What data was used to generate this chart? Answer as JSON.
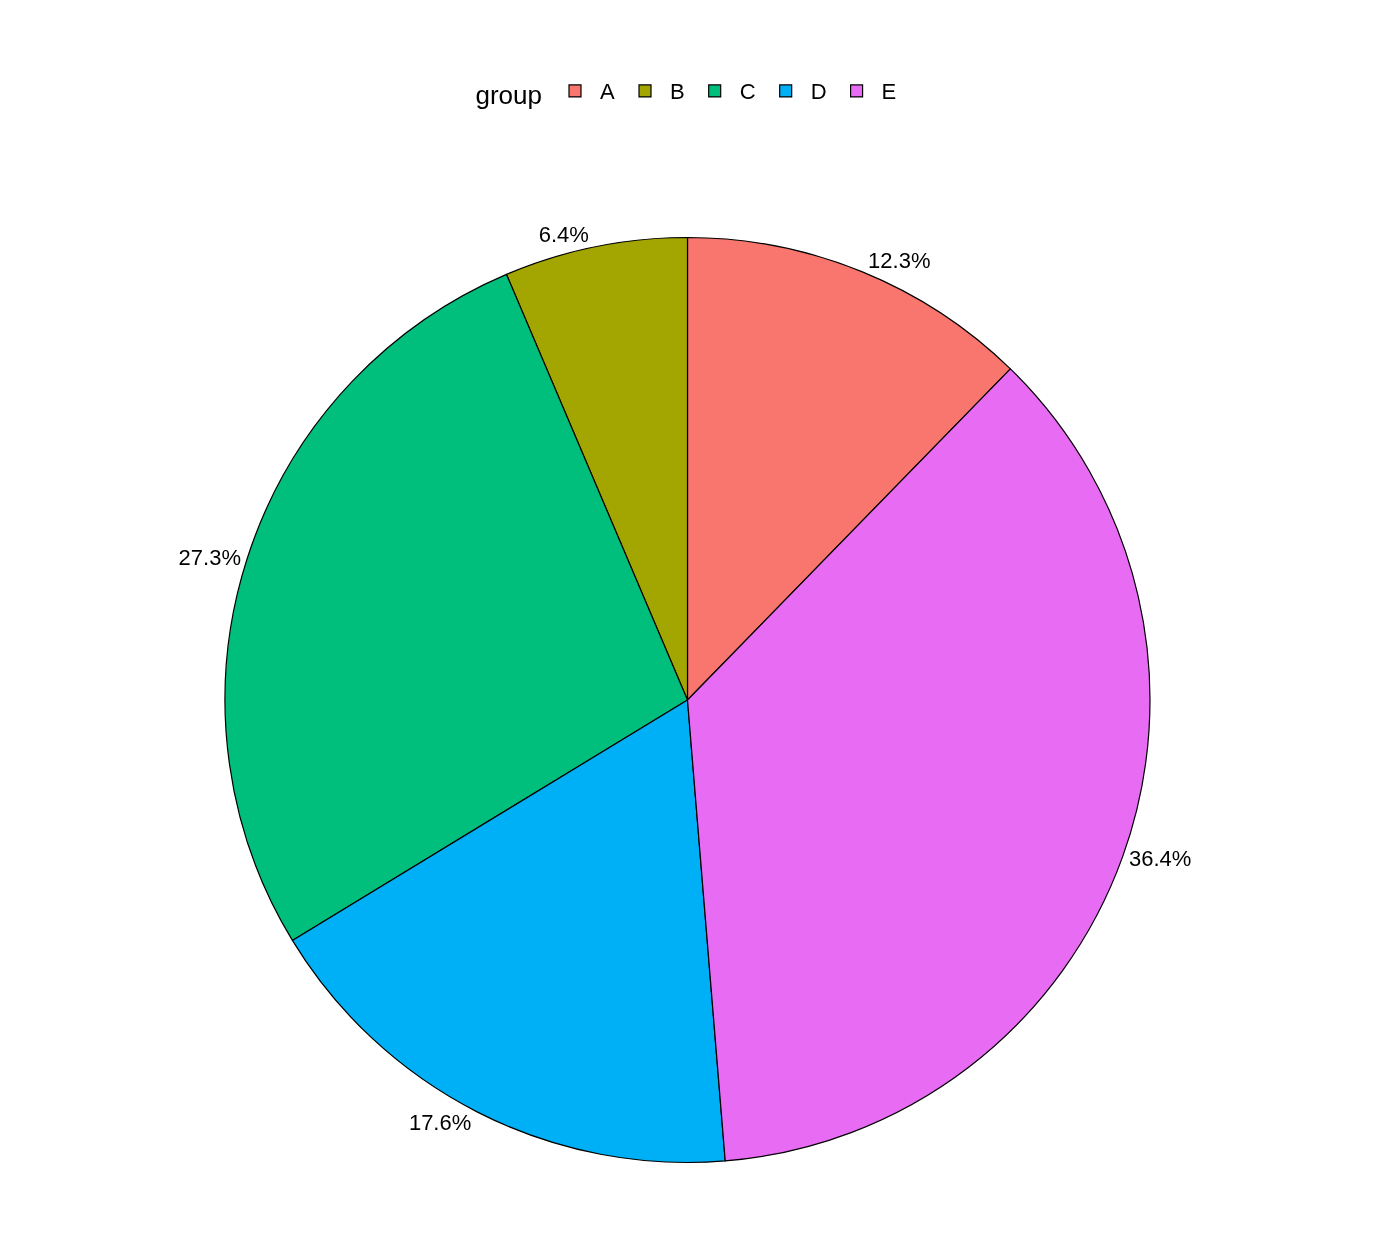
{
  "chart_data": {
    "type": "pie",
    "legend_title": "group",
    "legend": "top",
    "categories": [
      "A",
      "B",
      "C",
      "D",
      "E"
    ],
    "values": [
      12.3,
      6.4,
      27.3,
      17.6,
      36.4
    ],
    "colors": [
      "#f8766d",
      "#a3a500",
      "#00bf7d",
      "#00b0f6",
      "#e76bf3"
    ],
    "value_labels": [
      "12.3%",
      "6.4%",
      "27.3%",
      "17.6%",
      "36.4%"
    ]
  }
}
